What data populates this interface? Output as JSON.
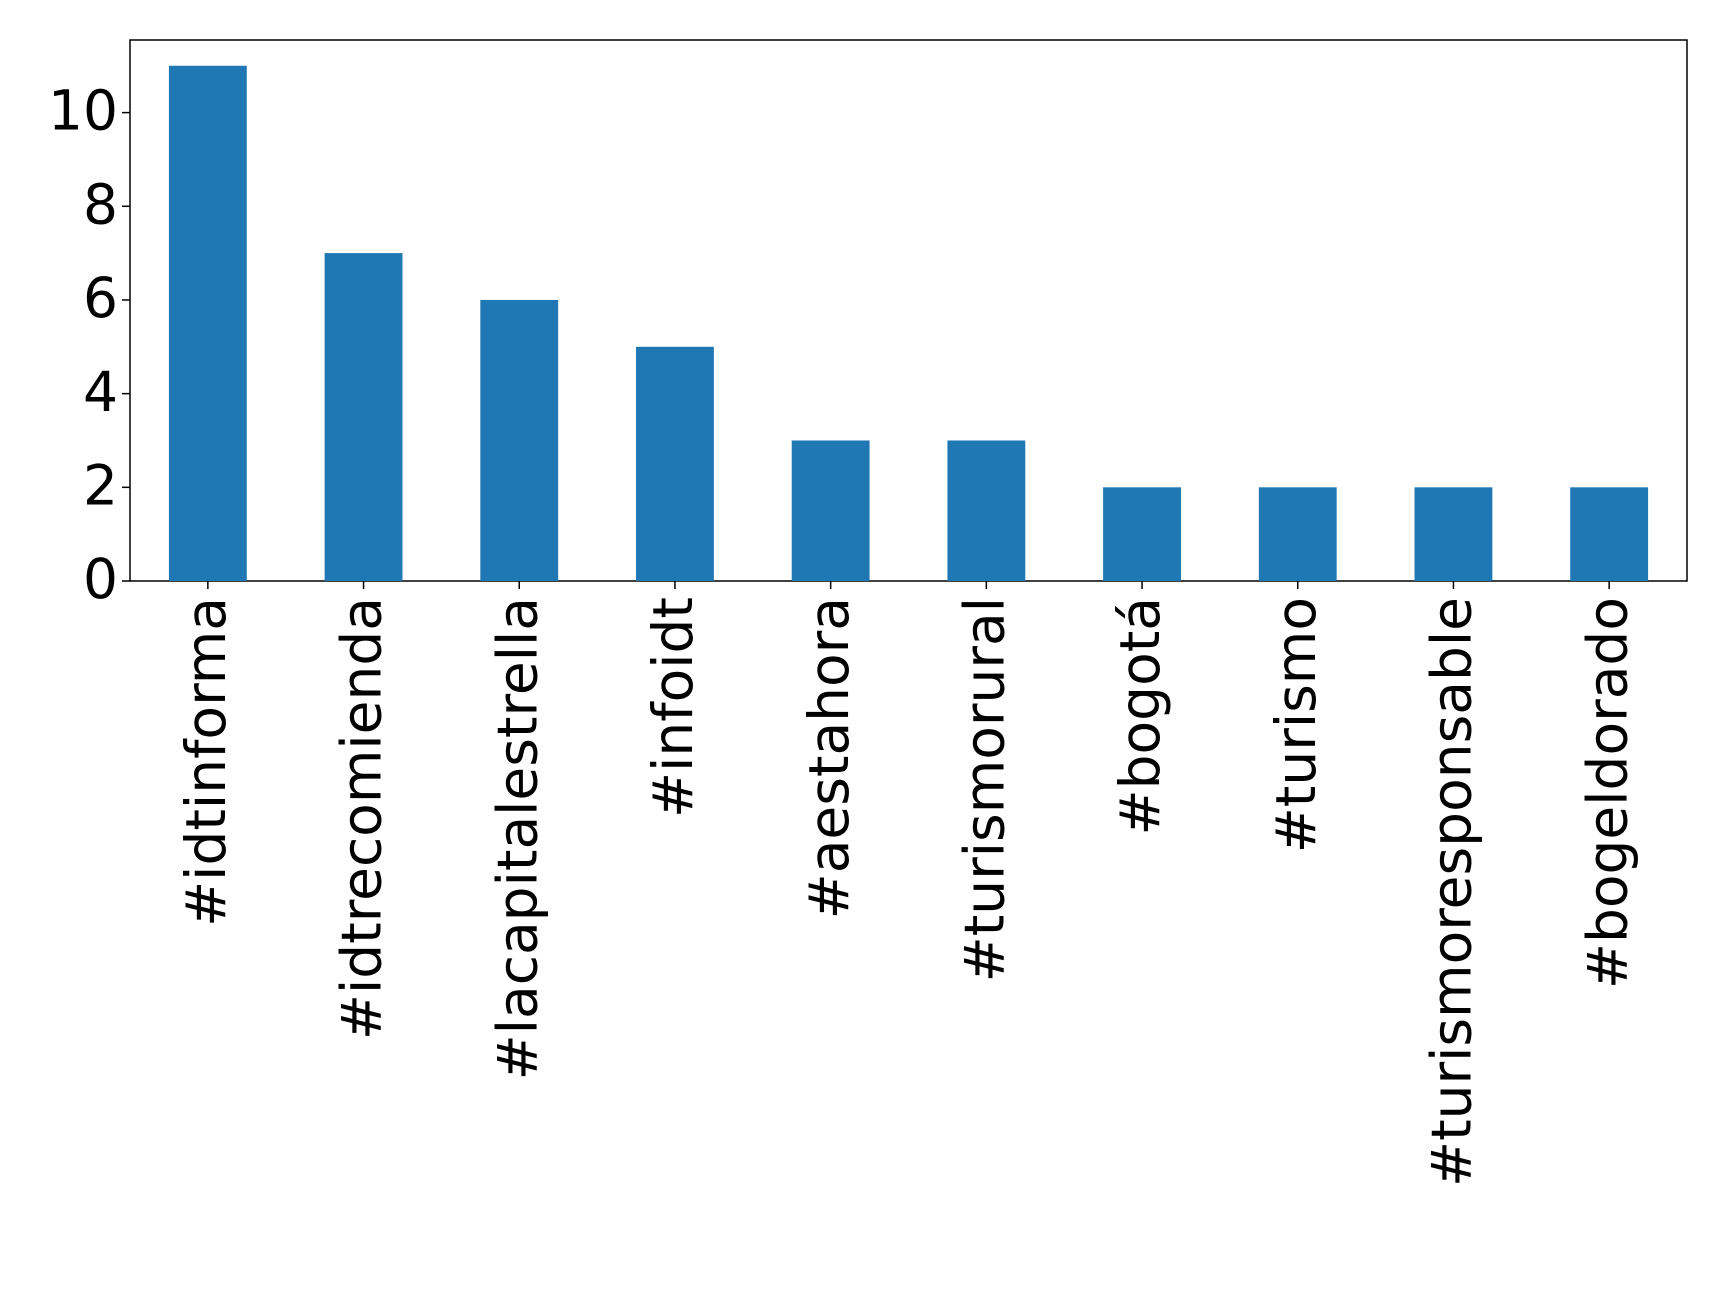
{
  "chart_data": {
    "type": "bar",
    "categories": [
      "#idtinforma",
      "#idtrecomienda",
      "#lacapitalestrella",
      "#infoidt",
      "#aestahora",
      "#turismorural",
      "#bogotá",
      "#turismo",
      "#turismoresponsable",
      "#bogeldorado"
    ],
    "values": [
      11,
      7,
      6,
      5,
      3,
      3,
      2,
      2,
      2,
      2
    ],
    "color": "#1f77b4",
    "ylim": [
      0,
      11.55
    ],
    "yticks": [
      0,
      2,
      4,
      6,
      8,
      10
    ],
    "grid": false
  }
}
